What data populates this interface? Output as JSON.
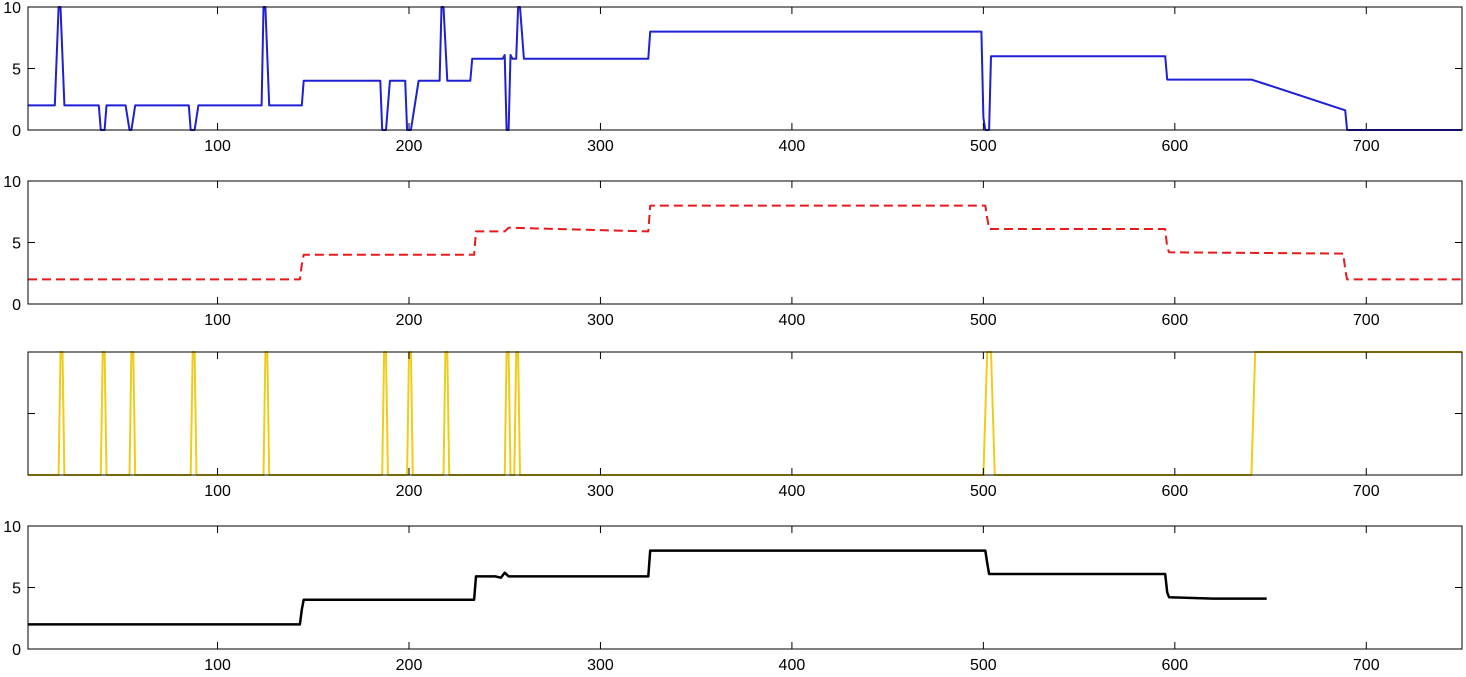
{
  "figure": {
    "background": "#ffffff",
    "axes_color": "#000000"
  },
  "chart_data": [
    {
      "type": "line",
      "xlim": [
        1,
        750
      ],
      "ylim": [
        0,
        10
      ],
      "xticks": [
        100,
        200,
        300,
        400,
        500,
        600,
        700
      ],
      "xtick_labels": [
        "100",
        "200",
        "300",
        "400",
        "500",
        "600",
        "700"
      ],
      "yticks": [
        0,
        5,
        10
      ],
      "ytick_labels": [
        "0",
        "5",
        "10"
      ],
      "grid": false,
      "series": [
        {
          "color": "#1f1fd6",
          "style": "solid",
          "x": [
            1,
            15,
            17,
            18,
            20,
            30,
            38,
            39,
            41,
            42,
            45,
            52,
            54,
            55,
            57,
            60,
            75,
            85,
            86,
            88,
            90,
            100,
            110,
            123,
            124,
            125,
            127,
            130,
            144,
            145,
            150,
            165,
            185,
            186,
            188,
            190,
            196,
            198,
            199,
            201,
            205,
            216,
            217,
            218,
            220,
            232,
            233,
            235,
            245,
            249,
            250,
            251,
            252,
            253,
            254,
            256,
            257,
            258,
            260,
            270,
            290,
            325,
            326,
            350,
            400,
            450,
            499,
            500,
            501,
            502,
            503,
            504,
            505,
            520,
            560,
            595,
            596,
            620,
            640,
            648,
            689,
            690,
            691,
            750
          ],
          "y": [
            2,
            2,
            10,
            10,
            2,
            2,
            2,
            0,
            0,
            2,
            2,
            2,
            0,
            0,
            2,
            2,
            2,
            2,
            0,
            0,
            2,
            2,
            2,
            2,
            10,
            10,
            2,
            2,
            2,
            4,
            4,
            4,
            4,
            0,
            0,
            4,
            4,
            4,
            0,
            0,
            4,
            4,
            10,
            10,
            4,
            4,
            5.8,
            5.8,
            5.8,
            5.8,
            6.1,
            0,
            0,
            6.1,
            5.8,
            5.8,
            10,
            10,
            5.8,
            5.8,
            5.8,
            5.8,
            8,
            8,
            8,
            8,
            8,
            1,
            0,
            0,
            0,
            6,
            6,
            6,
            6,
            6,
            4.1,
            4.1,
            4.1,
            3.7,
            1.6,
            0,
            0,
            0
          ]
        }
      ]
    },
    {
      "type": "line",
      "xlim": [
        1,
        750
      ],
      "ylim": [
        0,
        10
      ],
      "xticks": [
        100,
        200,
        300,
        400,
        500,
        600,
        700
      ],
      "xtick_labels": [
        "100",
        "200",
        "300",
        "400",
        "500",
        "600",
        "700"
      ],
      "yticks": [
        0,
        5,
        10
      ],
      "ytick_labels": [
        "0",
        "5",
        "10"
      ],
      "grid": false,
      "series": [
        {
          "color": "#e8191c",
          "style": "dashed",
          "x": [
            1,
            143,
            144,
            145,
            234,
            235,
            250,
            252,
            325,
            326,
            501,
            502,
            503,
            595,
            596,
            597,
            688,
            689,
            690,
            750
          ],
          "y": [
            2,
            2,
            3.2,
            4,
            4,
            5.9,
            5.9,
            6.2,
            5.9,
            8,
            8,
            7,
            6.1,
            6.1,
            4.6,
            4.2,
            4.1,
            2.8,
            2,
            2
          ]
        }
      ]
    },
    {
      "type": "line",
      "xlim": [
        1,
        750
      ],
      "ylim": [
        0,
        2
      ],
      "xticks": [
        100,
        200,
        300,
        400,
        500,
        600,
        700
      ],
      "xtick_labels": [
        "100",
        "200",
        "300",
        "400",
        "500",
        "600",
        "700"
      ],
      "yticks": [],
      "ytick_labels": [],
      "grid": false,
      "series": [
        {
          "color": "#f0cc1a",
          "style": "solid",
          "x": [
            1,
            17,
            18,
            19,
            20,
            39,
            40,
            41,
            42,
            54,
            55,
            56,
            57,
            86,
            87,
            88,
            89,
            124,
            125,
            126,
            127,
            186,
            187,
            188,
            189,
            199,
            200,
            201,
            202,
            218,
            219,
            220,
            221,
            250,
            251,
            252,
            253,
            255,
            256,
            257,
            258,
            500,
            502,
            504,
            506,
            640,
            642,
            750
          ],
          "y": [
            0,
            0,
            2,
            2,
            0,
            0,
            2,
            2,
            0,
            0,
            2,
            2,
            0,
            0,
            2,
            2,
            0,
            0,
            2,
            2,
            0,
            0,
            2,
            2,
            0,
            0,
            2,
            2,
            0,
            0,
            2,
            2,
            0,
            0,
            2,
            2,
            0,
            0,
            2,
            2,
            0,
            0,
            2,
            2,
            0,
            0,
            2,
            2
          ]
        }
      ]
    },
    {
      "type": "line",
      "xlim": [
        1,
        750
      ],
      "ylim": [
        0,
        10
      ],
      "xticks": [
        100,
        200,
        300,
        400,
        500,
        600,
        700
      ],
      "xtick_labels": [
        "100",
        "200",
        "300",
        "400",
        "500",
        "600",
        "700"
      ],
      "yticks": [
        0,
        5,
        10
      ],
      "ytick_labels": [
        "0",
        "5",
        "10"
      ],
      "grid": false,
      "series": [
        {
          "color": "#000000",
          "style": "solid",
          "x": [
            1,
            143,
            144,
            145,
            234,
            235,
            245,
            248,
            250,
            252,
            255,
            325,
            326,
            350,
            400,
            450,
            501,
            502,
            503,
            560,
            595,
            596,
            597,
            620,
            648
          ],
          "y": [
            2,
            2,
            3.2,
            4,
            4,
            5.9,
            5.9,
            5.8,
            6.2,
            5.9,
            5.9,
            5.9,
            8,
            8,
            8,
            8,
            8,
            7,
            6.1,
            6.1,
            6.1,
            4.6,
            4.2,
            4.1,
            4.1
          ]
        }
      ]
    }
  ]
}
